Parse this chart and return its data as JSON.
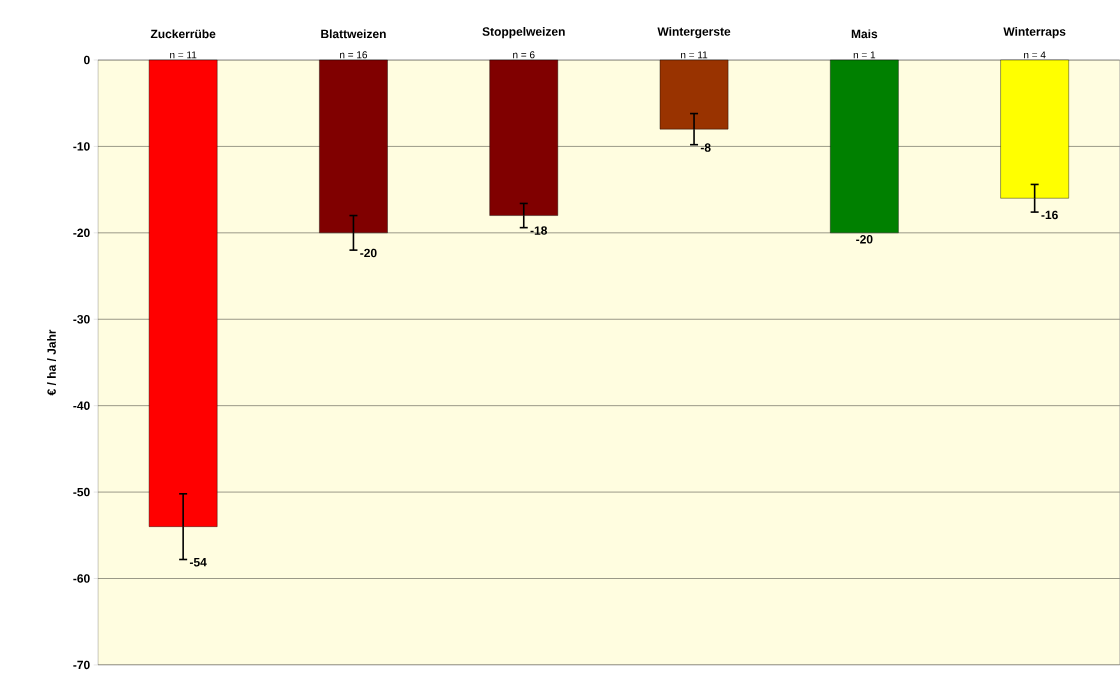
{
  "chart_data": {
    "type": "bar",
    "ylabel": "€ / ha / Jahr",
    "categories": [
      "Zuckerrübe",
      "Blattweizen",
      "Stoppelweizen",
      "Wintergerste",
      "Mais",
      "Winterraps"
    ],
    "values": [
      -54,
      -20,
      -18,
      -8,
      -20,
      -16
    ],
    "colors": [
      "#ff0000",
      "#800000",
      "#800000",
      "#993300",
      "#008000",
      "#ffff00"
    ],
    "errors": [
      3.8,
      2,
      1.4,
      1.8,
      null,
      1.6
    ],
    "value_labels": [
      "-54",
      "-20",
      "-18",
      "-8",
      "-20",
      "-16"
    ],
    "annotations": [
      "n = 11",
      "n = 16",
      "n = 6",
      "n = 11",
      "n = 1",
      "n = 4"
    ],
    "ylim": [
      -70,
      0
    ],
    "yticks": [
      -70,
      -60,
      -50,
      -40,
      -30,
      -20,
      -10,
      0
    ],
    "grid": "y"
  }
}
